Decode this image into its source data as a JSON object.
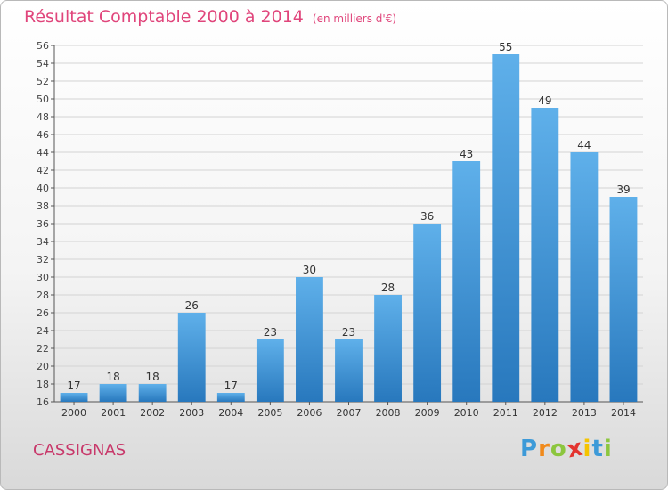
{
  "header": {
    "title": "Résultat Comptable 2000 à 2014",
    "unit": "(en milliers d'€)"
  },
  "commune": "CASSIGNAS",
  "logo": {
    "letters": [
      "P",
      "r",
      "o",
      "x",
      "i",
      "t",
      "i"
    ],
    "colors": [
      "#3d9ad8",
      "#f08a1c",
      "#8cc63e",
      "#e3342f",
      "#f5c400",
      "#3d9ad8",
      "#8cc63e"
    ]
  },
  "colors": {
    "title": "#e0457b",
    "bar_top": "#5fb0ea",
    "bar_bottom": "#2878bd",
    "grid": "#d3d3d3"
  },
  "chart_data": {
    "type": "bar",
    "title": "Résultat Comptable 2000 à 2014",
    "subtitle": "(en milliers d'€)",
    "xlabel": "",
    "ylabel": "",
    "categories": [
      "2000",
      "2001",
      "2002",
      "2003",
      "2004",
      "2005",
      "2006",
      "2007",
      "2008",
      "2009",
      "2010",
      "2011",
      "2012",
      "2013",
      "2014"
    ],
    "values": [
      17,
      18,
      18,
      26,
      17,
      23,
      30,
      23,
      28,
      36,
      43,
      55,
      49,
      44,
      39
    ],
    "ylim": [
      16,
      56
    ],
    "ytick_step": 2,
    "grid": true,
    "legend": "none"
  }
}
